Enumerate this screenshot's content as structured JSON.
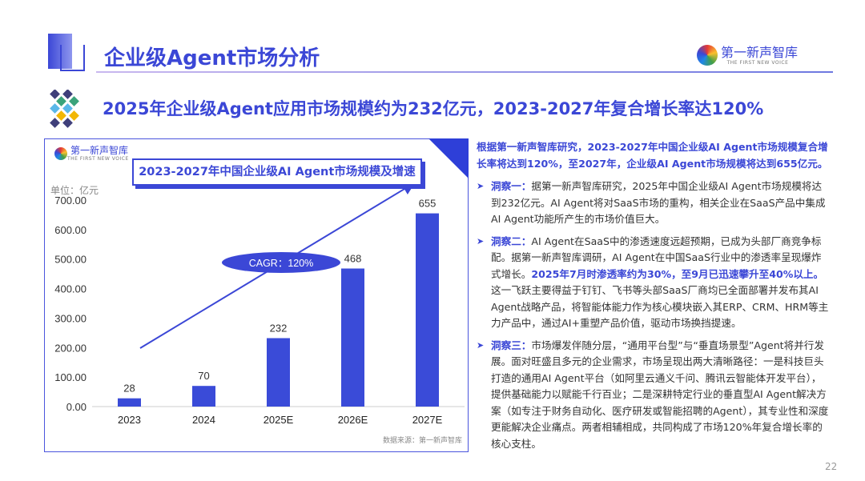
{
  "header": {
    "title": "企业级Agent市场分析",
    "logo_text": "第一新声智库",
    "logo_sub": "THE FIRST NEW VOICE"
  },
  "subtitle": "2025年企业级Agent应用市场规模约为232亿元，2023-2027年复合增长率达120%",
  "chart_data": {
    "type": "bar",
    "title": "2023-2027年中国企业级AI Agent市场规模及增速",
    "unit_label": "单位：亿元",
    "categories": [
      "2023",
      "2024",
      "2025E",
      "2026E",
      "2027E"
    ],
    "values": [
      28,
      70,
      232,
      468,
      655
    ],
    "value_labels": [
      "28",
      "70",
      "232",
      "468",
      "655"
    ],
    "yticks": [
      "0.00",
      "100.00",
      "200.00",
      "300.00",
      "400.00",
      "500.00",
      "600.00",
      "700.00"
    ],
    "ylim": [
      0,
      700
    ],
    "annotation": "CAGR：120%",
    "bar_color": "#3a4bd8",
    "grid": false,
    "source": "数据来源：第一新声智库"
  },
  "right": {
    "lead": "根据第一新声智库研究，2023-2027年中国企业级AI Agent市场规模复合增长率将达到120%，至2027年，企业级AI Agent市场规模将达到655亿元。",
    "insights": [
      {
        "label": "洞察一：",
        "text": "据第一新声智库研究，2025年中国企业级AI Agent市场规模将达到232亿元。AI Agent将对SaaS市场的重构，相关企业在SaaS产品中集成AI Agent功能所产生的市场价值巨大。"
      },
      {
        "label": "洞察二：",
        "text": "AI Agent在SaaS中的渗透速度远超预期，已成为头部厂商竞争标配。据第一新声智库调研，AI Agent在中国SaaS行业中的渗透率呈现爆炸式增长。",
        "highlight": "2025年7月时渗透率约为30%，至9月已迅速攀升至40%以上。",
        "text2": "这一飞跃主要得益于钉钉、飞书等头部SaaS厂商均已全面部署并发布其AI Agent战略产品，将智能体能力作为核心模块嵌入其ERP、CRM、HRM等主力产品中，通过AI+重塑产品价值，驱动市场换挡提速。"
      },
      {
        "label": "洞察三：",
        "text": "市场爆发伴随分层，“通用平台型”与“垂直场景型”Agent将并行发展。面对旺盛且多元的企业需求，市场呈现出两大清晰路径：一是科技巨头打造的通用AI Agent平台（如阿里云通义千问、腾讯云智能体开发平台），提供基础能力以赋能千行百业；二是深耕特定行业的垂直型AI Agent解决方案（如专注于财务自动化、医疗研发或智能招聘的Agent），其专业性和深度更能解决企业痛点。两者相辅相成，共同构成了市场120%年复合增长率的核心支柱。"
      }
    ]
  },
  "page_number": "22"
}
